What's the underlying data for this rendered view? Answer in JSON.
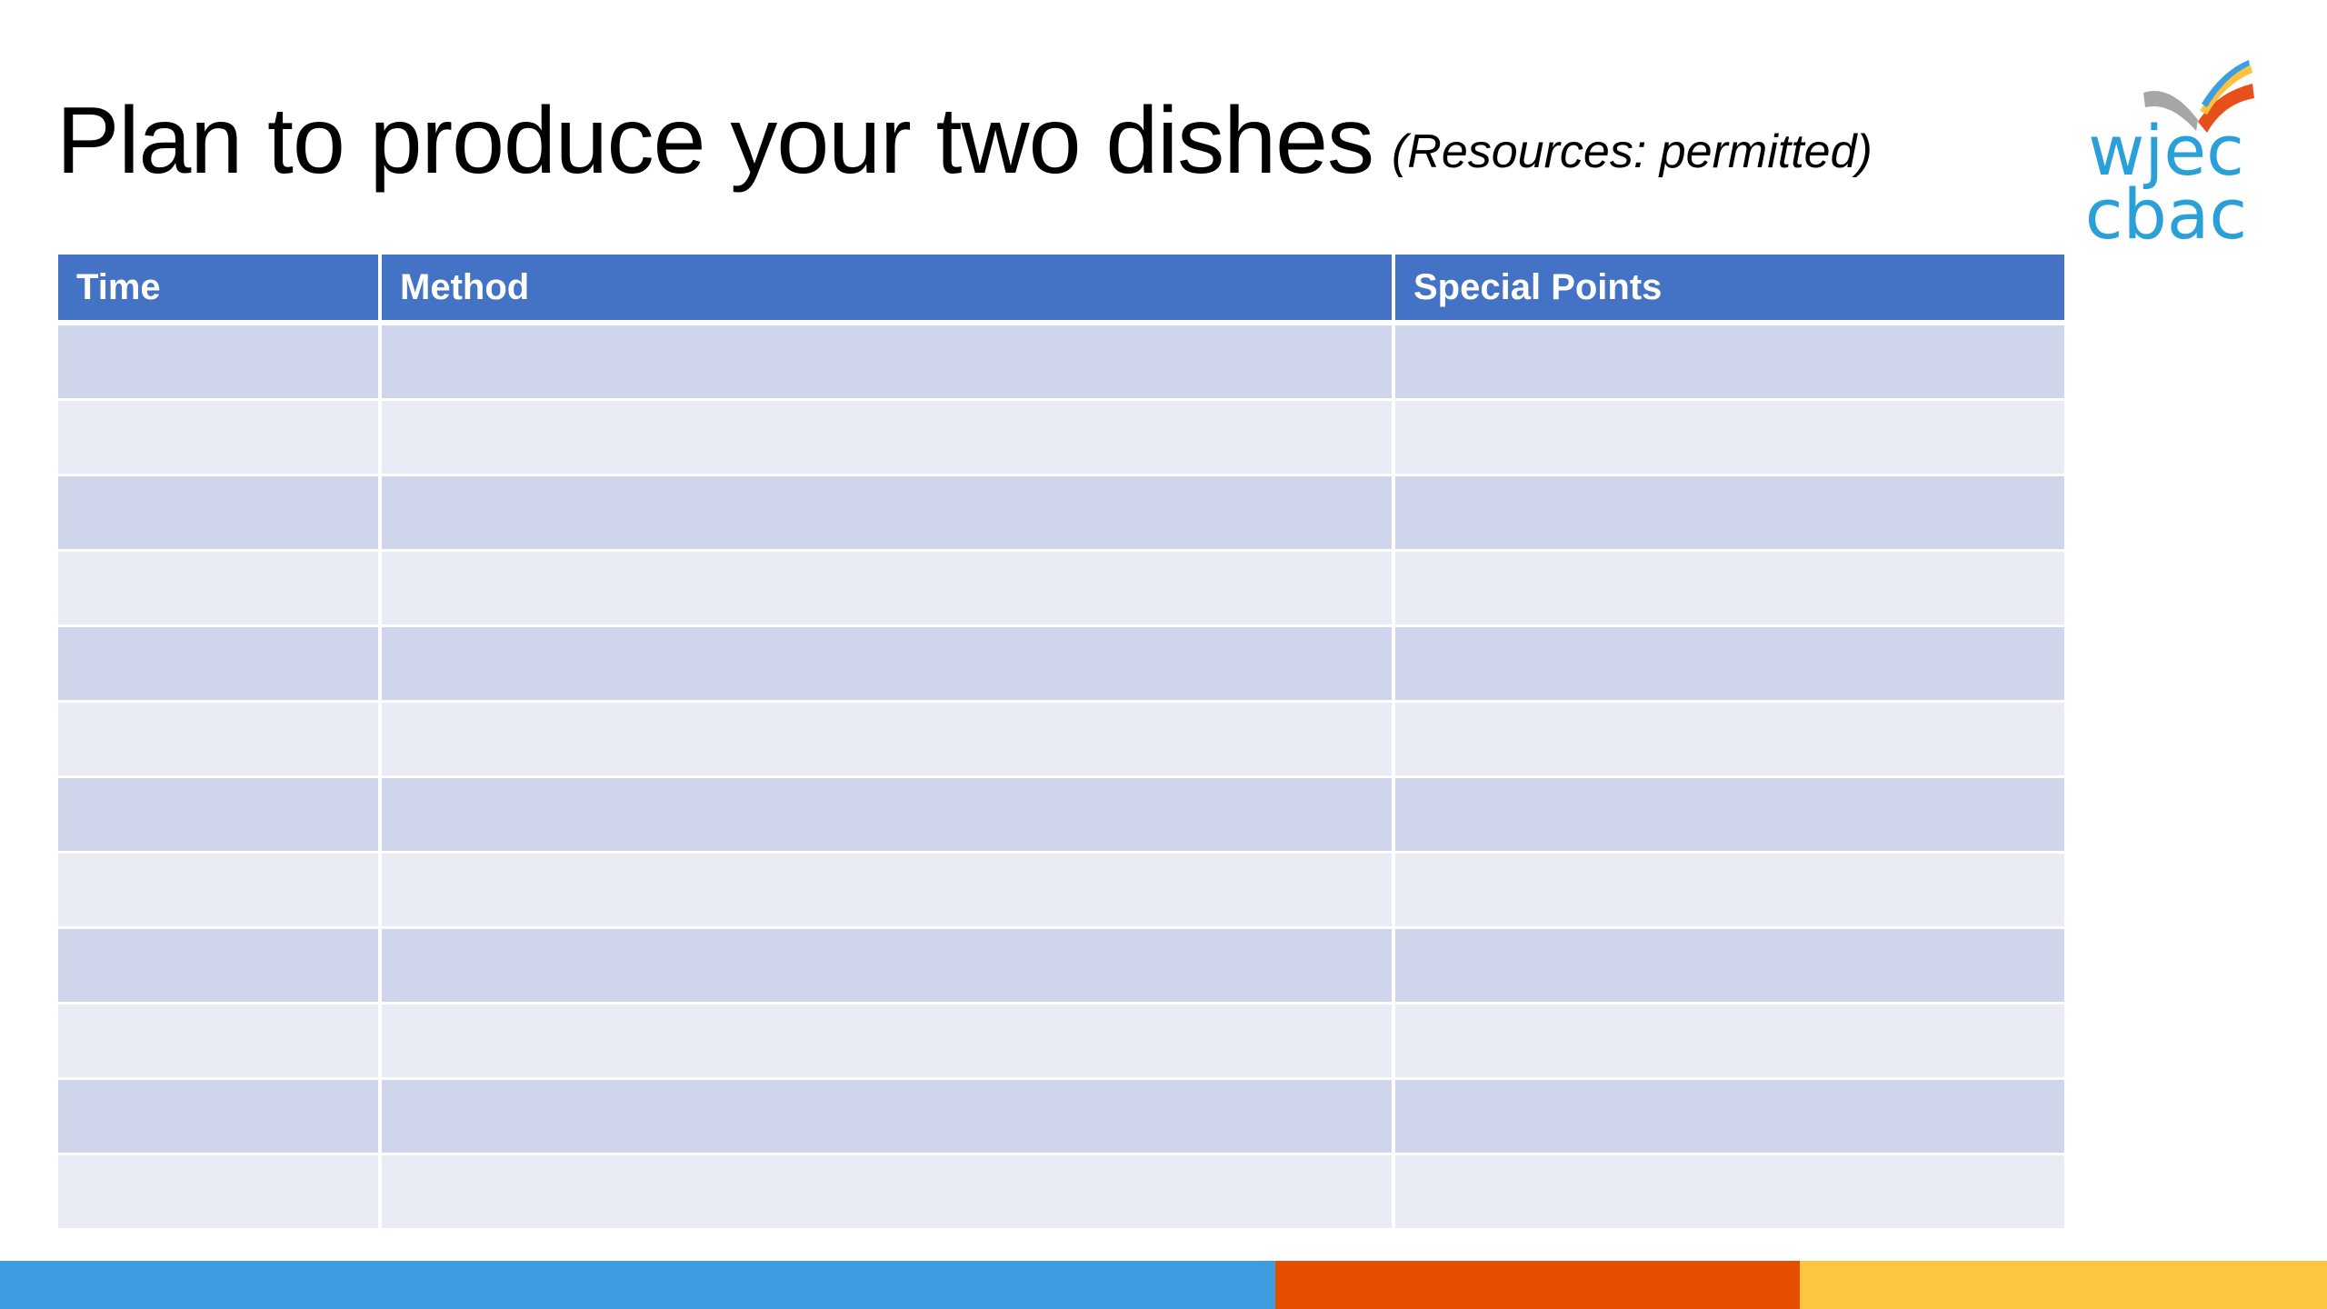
{
  "slide": {
    "title": "Plan to produce your two dishes",
    "subtitle": "(Resources: permitted)"
  },
  "logo": {
    "line1": "wjec",
    "line2": "cbac",
    "colors": {
      "text": "#2a9fd8",
      "book_gray": "#a6a6a6",
      "book_orange": "#e8501a",
      "book_blue": "#3c9ee0",
      "book_yellow": "#fdc13d"
    }
  },
  "table": {
    "headers": [
      "Time",
      "Method",
      "Special Points"
    ],
    "rows": [
      [
        "",
        "",
        ""
      ],
      [
        "",
        "",
        ""
      ],
      [
        "",
        "",
        ""
      ],
      [
        "",
        "",
        ""
      ],
      [
        "",
        "",
        ""
      ],
      [
        "",
        "",
        ""
      ],
      [
        "",
        "",
        ""
      ],
      [
        "",
        "",
        ""
      ],
      [
        "",
        "",
        ""
      ],
      [
        "",
        "",
        ""
      ],
      [
        "",
        "",
        ""
      ],
      [
        "",
        "",
        ""
      ]
    ],
    "colors": {
      "header": "#4472c4",
      "row_dark": "#cfd5ea",
      "row_light": "#e9ebf5"
    }
  },
  "footer_colors": {
    "blue": "#3c9ee0",
    "orange": "#e64f00",
    "yellow": "#fdc540"
  }
}
